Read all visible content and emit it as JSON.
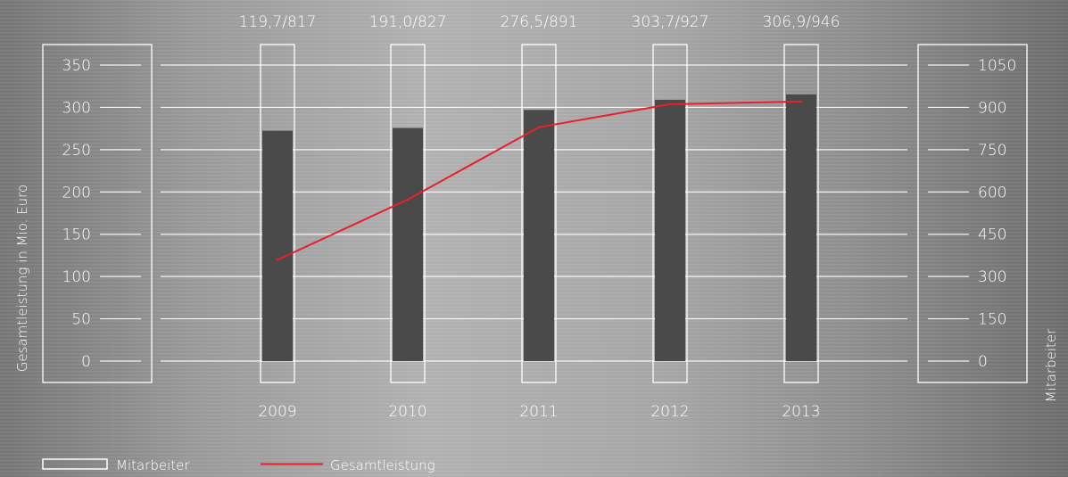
{
  "chart_data": {
    "type": "bar",
    "categories": [
      "2009",
      "2010",
      "2011",
      "2012",
      "2013"
    ],
    "top_labels": [
      "119,7/817",
      "191,0/827",
      "276,5/891",
      "303,7/927",
      "306,9/946"
    ],
    "ylabel": "Gesamtleistung in Mio. Euro",
    "y2label": "Mitarbeiter",
    "ylim": [
      0,
      350
    ],
    "y2lim": [
      0,
      1050
    ],
    "yticks": [
      "0",
      "50",
      "100",
      "150",
      "200",
      "250",
      "300",
      "350"
    ],
    "y2ticks": [
      "0",
      "150",
      "300",
      "450",
      "600",
      "750",
      "900",
      "1050"
    ],
    "series": [
      {
        "name": "Mitarbeiter",
        "type": "bar",
        "axis": "right",
        "values": [
          817,
          827,
          891,
          927,
          946
        ]
      },
      {
        "name": "Gesamtleistung",
        "type": "line",
        "axis": "left",
        "values": [
          119.7,
          191.0,
          276.5,
          303.7,
          306.9
        ]
      }
    ],
    "grid": true,
    "legend_position": "bottom-left",
    "colors": {
      "bar": "#4a4a4a",
      "line": "#e8202a",
      "frame": "#ffffff",
      "text": "#ffffff"
    }
  }
}
